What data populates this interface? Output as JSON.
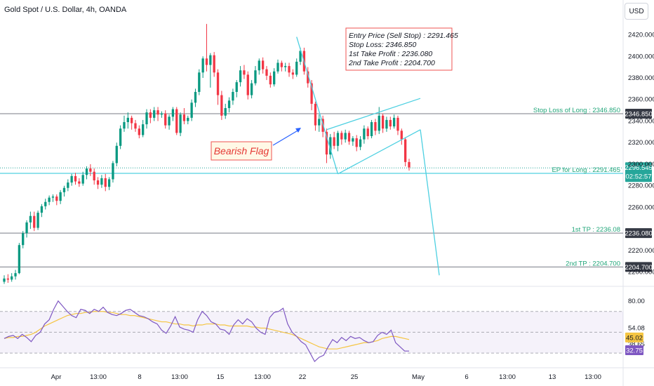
{
  "header": {
    "title": "Gold Spot / U.S. Dollar, 4h, OANDA",
    "currency_button": "USD"
  },
  "chart_data": {
    "type": "candlestick",
    "price_axis": {
      "ylim": [
        2190,
        2434
      ],
      "ticks": [
        2200,
        2220,
        2260,
        2280,
        2300,
        2320,
        2340,
        2360,
        2380,
        2400,
        2420
      ],
      "tick_labels": [
        "2200.000",
        "2220.000",
        "2260.000",
        "2280.000",
        "2300.000",
        "2320.000",
        "2340.000",
        "2360.000",
        "2380.000",
        "2400.000",
        "2420.000"
      ]
    },
    "time_axis": {
      "labels": [
        "Apr",
        "13:00",
        "8",
        "13:00",
        "15",
        "13:00",
        "22",
        "25",
        "May",
        "6",
        "13:00",
        "13",
        "13:00"
      ]
    },
    "candles": [
      [
        2191,
        2194,
        2189,
        2197
      ],
      [
        2194,
        2193,
        2190,
        2198
      ],
      [
        2193,
        2196,
        2191,
        2199
      ],
      [
        2196,
        2199,
        2193,
        2202
      ],
      [
        2199,
        2225,
        2198,
        2227
      ],
      [
        2225,
        2236,
        2222,
        2238
      ],
      [
        2236,
        2246,
        2232,
        2248
      ],
      [
        2246,
        2252,
        2240,
        2256
      ],
      [
        2252,
        2241,
        2238,
        2256
      ],
      [
        2241,
        2255,
        2239,
        2257
      ],
      [
        2255,
        2261,
        2251,
        2263
      ],
      [
        2261,
        2265,
        2258,
        2268
      ],
      [
        2265,
        2269,
        2262,
        2271
      ],
      [
        2269,
        2270,
        2265,
        2272
      ],
      [
        2270,
        2266,
        2262,
        2272
      ],
      [
        2266,
        2274,
        2263,
        2276
      ],
      [
        2274,
        2278,
        2270,
        2280
      ],
      [
        2278,
        2283,
        2275,
        2286
      ],
      [
        2283,
        2289,
        2280,
        2291
      ],
      [
        2289,
        2284,
        2281,
        2292
      ],
      [
        2284,
        2282,
        2279,
        2287
      ],
      [
        2282,
        2290,
        2280,
        2293
      ],
      [
        2290,
        2296,
        2286,
        2298
      ],
      [
        2296,
        2293,
        2289,
        2300
      ],
      [
        2293,
        2285,
        2281,
        2296
      ],
      [
        2285,
        2281,
        2277,
        2288
      ],
      [
        2281,
        2287,
        2278,
        2290
      ],
      [
        2287,
        2279,
        2275,
        2291
      ],
      [
        2279,
        2286,
        2276,
        2288
      ],
      [
        2286,
        2301,
        2283,
        2303
      ],
      [
        2301,
        2317,
        2298,
        2320
      ],
      [
        2317,
        2333,
        2314,
        2336
      ],
      [
        2333,
        2339,
        2330,
        2345
      ],
      [
        2339,
        2343,
        2333,
        2348
      ],
      [
        2343,
        2338,
        2332,
        2345
      ],
      [
        2338,
        2333,
        2330,
        2341
      ],
      [
        2333,
        2327,
        2324,
        2336
      ],
      [
        2327,
        2337,
        2325,
        2341
      ],
      [
        2337,
        2348,
        2333,
        2351
      ],
      [
        2348,
        2343,
        2338,
        2351
      ],
      [
        2343,
        2350,
        2340,
        2353
      ],
      [
        2350,
        2346,
        2340,
        2353
      ],
      [
        2346,
        2347,
        2343,
        2349
      ],
      [
        2347,
        2336,
        2333,
        2350
      ],
      [
        2336,
        2344,
        2332,
        2346
      ],
      [
        2344,
        2351,
        2340,
        2353
      ],
      [
        2351,
        2329,
        2327,
        2353
      ],
      [
        2329,
        2346,
        2326,
        2348
      ],
      [
        2346,
        2340,
        2337,
        2352
      ],
      [
        2340,
        2343,
        2337,
        2345
      ],
      [
        2343,
        2357,
        2340,
        2360
      ],
      [
        2357,
        2367,
        2353,
        2370
      ],
      [
        2367,
        2385,
        2364,
        2388
      ],
      [
        2385,
        2398,
        2380,
        2400
      ],
      [
        2398,
        2392,
        2386,
        2430
      ],
      [
        2392,
        2401,
        2371,
        2403
      ],
      [
        2401,
        2385,
        2381,
        2404
      ],
      [
        2385,
        2364,
        2355,
        2388
      ],
      [
        2364,
        2345,
        2341,
        2368
      ],
      [
        2345,
        2352,
        2342,
        2356
      ],
      [
        2352,
        2359,
        2348,
        2362
      ],
      [
        2359,
        2367,
        2355,
        2370
      ],
      [
        2367,
        2376,
        2362,
        2378
      ],
      [
        2376,
        2387,
        2372,
        2391
      ],
      [
        2387,
        2383,
        2379,
        2392
      ],
      [
        2383,
        2364,
        2360,
        2386
      ],
      [
        2364,
        2375,
        2361,
        2378
      ],
      [
        2375,
        2387,
        2373,
        2391
      ],
      [
        2387,
        2396,
        2383,
        2398
      ],
      [
        2396,
        2388,
        2384,
        2399
      ],
      [
        2388,
        2382,
        2378,
        2391
      ],
      [
        2382,
        2374,
        2371,
        2385
      ],
      [
        2374,
        2386,
        2372,
        2389
      ],
      [
        2386,
        2394,
        2384,
        2397
      ],
      [
        2394,
        2390,
        2386,
        2396
      ],
      [
        2390,
        2391,
        2386,
        2394
      ],
      [
        2391,
        2385,
        2381,
        2394
      ],
      [
        2385,
        2383,
        2379,
        2388
      ],
      [
        2383,
        2395,
        2381,
        2398
      ],
      [
        2395,
        2405,
        2392,
        2408
      ],
      [
        2405,
        2386,
        2383,
        2408
      ],
      [
        2386,
        2375,
        2371,
        2390
      ],
      [
        2375,
        2356,
        2350,
        2378
      ],
      [
        2356,
        2336,
        2331,
        2358
      ],
      [
        2336,
        2342,
        2330,
        2346
      ],
      [
        2342,
        2330,
        2325,
        2345
      ],
      [
        2330,
        2309,
        2301,
        2333
      ],
      [
        2309,
        2325,
        2305,
        2328
      ],
      [
        2325,
        2317,
        2314,
        2330
      ],
      [
        2317,
        2329,
        2312,
        2331
      ],
      [
        2329,
        2323,
        2318,
        2331
      ],
      [
        2323,
        2329,
        2320,
        2332
      ],
      [
        2329,
        2321,
        2318,
        2331
      ],
      [
        2321,
        2324,
        2317,
        2326
      ],
      [
        2324,
        2316,
        2312,
        2327
      ],
      [
        2316,
        2323,
        2313,
        2326
      ],
      [
        2323,
        2333,
        2319,
        2336
      ],
      [
        2333,
        2326,
        2323,
        2335
      ],
      [
        2326,
        2339,
        2324,
        2341
      ],
      [
        2339,
        2331,
        2327,
        2342
      ],
      [
        2331,
        2345,
        2328,
        2353
      ],
      [
        2345,
        2333,
        2329,
        2347
      ],
      [
        2333,
        2341,
        2330,
        2344
      ],
      [
        2341,
        2335,
        2332,
        2344
      ],
      [
        2335,
        2343,
        2333,
        2346
      ],
      [
        2343,
        2331,
        2327,
        2345
      ],
      [
        2331,
        2323,
        2318,
        2333
      ],
      [
        2323,
        2302,
        2298,
        2325
      ],
      [
        2302,
        2297,
        2294,
        2305
      ]
    ],
    "horizontal_lines": [
      {
        "label": "Stop Loss of Long : 2346.850",
        "price": 2346.85,
        "axis_tag": "2346.850"
      },
      {
        "label": "EP for Long : 2291.465",
        "price": 2291.465,
        "axis_tag": "2291.465"
      },
      {
        "label": "1st TP : 2236.08",
        "price": 2236.08,
        "axis_tag": "2236.080"
      },
      {
        "label": "2nd TP : 2204.700",
        "price": 2204.7,
        "axis_tag": "2204.700"
      }
    ],
    "current_price": {
      "value": "2296.545",
      "countdown": "02:52:57"
    },
    "annotation_box": [
      "Entry Price (Sell Stop) : 2291.465",
      "Stop Loss: 2346.850",
      "1st Take Profit : 2236.080",
      "2nd Take Profit : 2204.700"
    ],
    "pattern_label": "Bearish Flag",
    "rsi": {
      "ylim": [
        20,
        90
      ],
      "ticks": [
        80.0,
        54.08,
        38.65
      ],
      "tick_labels": [
        "80.00",
        "54.08",
        "38.65"
      ],
      "value_tags": [
        {
          "value": 45.02,
          "label": "45.02"
        },
        {
          "value": 32.75,
          "label": "32.75"
        }
      ],
      "upper_band": 70,
      "lower_band": 30,
      "rsi_values": [
        44,
        46,
        47,
        44,
        48,
        45,
        41,
        47,
        50,
        58,
        62,
        72,
        80,
        75,
        70,
        66,
        64,
        72,
        71,
        68,
        72,
        70,
        74,
        69,
        67,
        66,
        68,
        71,
        72,
        69,
        66,
        65,
        63,
        60,
        58,
        52,
        49,
        56,
        65,
        55,
        53,
        52,
        50,
        62,
        70,
        66,
        60,
        58,
        53,
        52,
        48,
        57,
        62,
        58,
        63,
        60,
        54,
        50,
        48,
        64,
        69,
        70,
        73,
        58,
        50,
        46,
        41,
        38,
        30,
        22,
        26,
        28,
        36,
        43,
        40,
        45,
        42,
        46,
        44,
        45,
        42,
        40,
        41,
        47,
        50,
        48,
        52,
        40,
        36,
        32,
        32
      ],
      "ma_values": [
        44,
        45,
        45,
        46,
        46,
        47,
        48,
        50,
        53,
        56,
        58,
        60,
        62,
        64,
        66,
        67,
        68,
        68,
        69,
        69,
        70,
        70,
        70,
        69,
        69,
        68,
        67,
        67,
        66,
        66,
        65,
        64,
        63,
        62,
        61,
        60,
        60,
        59,
        58,
        58,
        57,
        57,
        56,
        57,
        57,
        58,
        58,
        58,
        57,
        57,
        56,
        56,
        56,
        56,
        56,
        55,
        55,
        54,
        54,
        53,
        52,
        51,
        50,
        49,
        48,
        46,
        44,
        42,
        40,
        38,
        36,
        35,
        34,
        34,
        34,
        35,
        36,
        37,
        38,
        39,
        40,
        40,
        41,
        42,
        44,
        45,
        46,
        46,
        45,
        44,
        43
      ]
    }
  }
}
